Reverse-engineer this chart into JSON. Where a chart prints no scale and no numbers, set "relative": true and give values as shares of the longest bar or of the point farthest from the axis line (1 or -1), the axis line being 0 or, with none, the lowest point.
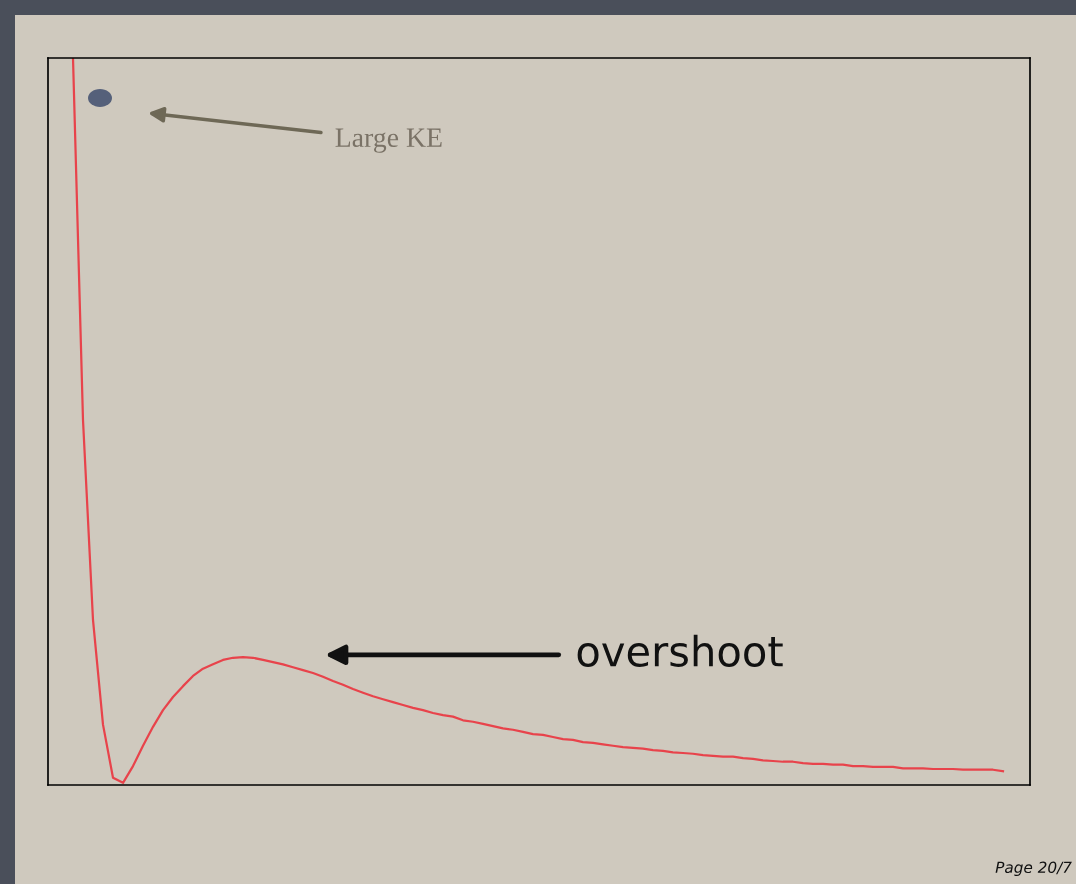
{
  "chart_data": {
    "type": "line",
    "relative": true,
    "categories": [
      null,
      null,
      null,
      null,
      null,
      null,
      null,
      null,
      null,
      null,
      null,
      null,
      null,
      null,
      null,
      null,
      null,
      null,
      null,
      null,
      null,
      null,
      null,
      null,
      null,
      null,
      null,
      null,
      null,
      null,
      null,
      null,
      null,
      null,
      null,
      null,
      null,
      null,
      null,
      null,
      null,
      null,
      null,
      null,
      null,
      null,
      null,
      null,
      null,
      null,
      null,
      null,
      null,
      null,
      null,
      null,
      null,
      null,
      null,
      null,
      null,
      null,
      null,
      null,
      null,
      null,
      null,
      null,
      null,
      null,
      null,
      null,
      null,
      null,
      null,
      null,
      null,
      null,
      null,
      null,
      null,
      null,
      null,
      null,
      null,
      null,
      null,
      null,
      null,
      null,
      null,
      null,
      null,
      null
    ],
    "series": [
      {
        "color": "#e8434b",
        "values": [
          1.0,
          0.502,
          0.227,
          0.083,
          0.01,
          0.003,
          0.026,
          0.054,
          0.08,
          0.103,
          0.121,
          0.136,
          0.15,
          0.16,
          0.166,
          0.172,
          0.175,
          0.176,
          0.175,
          0.172,
          0.169,
          0.166,
          0.162,
          0.158,
          0.154,
          0.149,
          0.143,
          0.138,
          0.132,
          0.127,
          0.122,
          0.118,
          0.114,
          0.11,
          0.106,
          0.103,
          0.099,
          0.096,
          0.094,
          0.089,
          0.087,
          0.084,
          0.081,
          0.078,
          0.076,
          0.073,
          0.07,
          0.069,
          0.066,
          0.063,
          0.062,
          0.059,
          0.058,
          0.056,
          0.054,
          0.052,
          0.051,
          0.05,
          0.048,
          0.047,
          0.045,
          0.044,
          0.043,
          0.041,
          0.04,
          0.039,
          0.039,
          0.037,
          0.036,
          0.034,
          0.033,
          0.032,
          0.032,
          0.03,
          0.029,
          0.029,
          0.028,
          0.028,
          0.026,
          0.026,
          0.025,
          0.025,
          0.025,
          0.023,
          0.023,
          0.023,
          0.022,
          0.022,
          0.022,
          0.021,
          0.021,
          0.021,
          0.021,
          0.019
        ]
      }
    ],
    "annotations": [
      "Large KE",
      "overshoot",
      "Page 20/7"
    ],
    "grid": false,
    "legend": false,
    "marker": "none",
    "line_style": "solid"
  }
}
